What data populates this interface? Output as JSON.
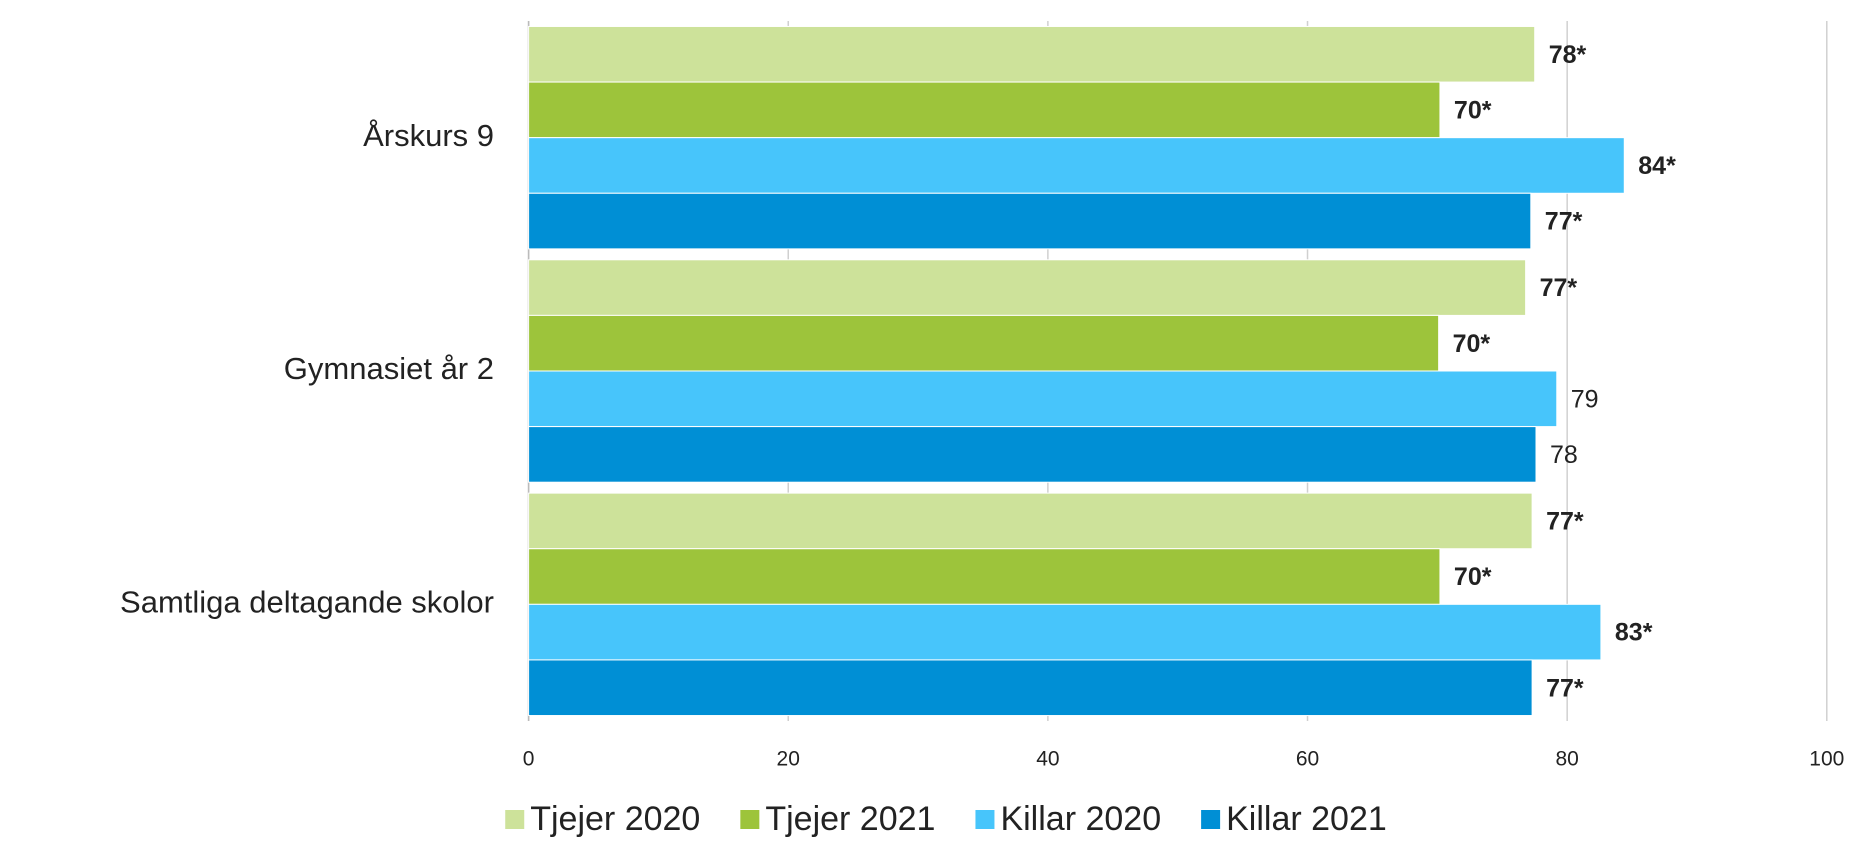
{
  "chart_data": {
    "type": "hbar",
    "categories": [
      "Årskurs 9",
      "Gymnasiet år 2",
      "Samtliga deltagande skolor"
    ],
    "series": [
      {
        "name": "Tjejer 2020",
        "color": "#cde29a",
        "values": [
          77.5,
          76.8,
          77.3
        ],
        "value_labels": [
          "78*",
          "77*",
          "77*"
        ]
      },
      {
        "name": "Tjejer 2021",
        "color": "#9dc43b",
        "values": [
          70.2,
          70.1,
          70.2
        ],
        "value_labels": [
          "70*",
          "70*",
          "70*"
        ]
      },
      {
        "name": "Killar 2020",
        "color": "#47c5fb",
        "values": [
          84.4,
          79.2,
          82.6
        ],
        "value_labels": [
          "84*",
          "79",
          "83*"
        ]
      },
      {
        "name": "Killar 2021",
        "color": "#008fd5",
        "values": [
          77.2,
          77.6,
          77.3
        ],
        "value_labels": [
          "77*",
          "78",
          "77*"
        ]
      }
    ],
    "xlim": [
      0,
      100
    ],
    "xticks": [
      0,
      20,
      40,
      60,
      80,
      100
    ],
    "grid": true,
    "legend": "bottom"
  }
}
